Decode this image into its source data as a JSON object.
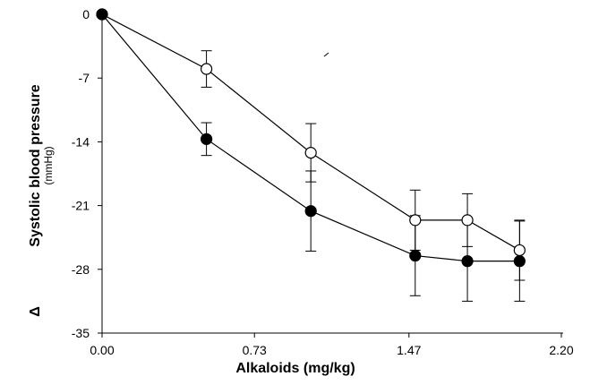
{
  "chart_data": {
    "type": "line",
    "xlabel": "Alkaloids  (mg/kg)",
    "ylabel_prefix": "Δ",
    "ylabel": "Systolic blood pressure",
    "ylabel_unit": "(mmHg)",
    "xlim": [
      0,
      2.2
    ],
    "ylim": [
      -35,
      0
    ],
    "x_ticks": [
      0,
      0.73,
      1.47,
      2.2
    ],
    "x_tick_labels": [
      "0.00",
      "0.73",
      "1.47",
      "2.20"
    ],
    "y_ticks": [
      0,
      -7,
      -14,
      -21,
      -28,
      -35
    ],
    "y_tick_labels": [
      "0",
      "-7",
      "-14",
      "-21",
      "-28",
      "-35"
    ],
    "grid": false,
    "legend": "none",
    "series": [
      {
        "marker": "open-circle",
        "color": "#000000",
        "x": [
          0,
          0.5,
          1.0,
          1.5,
          1.75,
          2.0
        ],
        "y": [
          0,
          -6.0,
          -15.2,
          -22.6,
          -22.6,
          -25.9
        ],
        "err": [
          0,
          2.0,
          3.2,
          3.3,
          2.9,
          3.3
        ]
      },
      {
        "marker": "filled-circle",
        "color": "#000000",
        "x": [
          0,
          0.5,
          1.0,
          1.5,
          1.75,
          2.0
        ],
        "y": [
          0,
          -13.7,
          -21.6,
          -26.5,
          -27.1,
          -27.1
        ],
        "err": [
          0,
          1.8,
          4.4,
          4.4,
          4.4,
          4.4
        ]
      }
    ]
  }
}
